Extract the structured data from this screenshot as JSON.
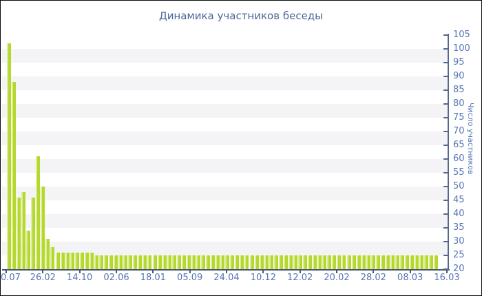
{
  "chart_data": {
    "type": "bar",
    "title": "Динамика участников беседы",
    "ylabel": "Число участников",
    "xlabel": "",
    "ylim": [
      20,
      105
    ],
    "y_ticks": [
      105,
      100,
      95,
      90,
      85,
      80,
      75,
      70,
      65,
      60,
      55,
      50,
      45,
      40,
      35,
      30,
      25,
      20
    ],
    "x_tick_labels": [
      "0.07",
      "26.02",
      "14.10",
      "02.06",
      "18.01",
      "05.09",
      "24.04",
      "10.12",
      "12.02",
      "20.02",
      "28.02",
      "08.03",
      "16.03"
    ],
    "values": [
      102,
      88,
      46,
      48,
      34,
      46,
      61,
      50,
      31,
      28,
      26,
      26,
      26,
      26,
      26,
      26,
      26,
      26,
      25,
      25,
      25,
      25,
      25,
      25,
      25,
      25,
      25,
      25,
      25,
      25,
      25,
      25,
      25,
      25,
      25,
      25,
      25,
      25,
      25,
      25,
      25,
      25,
      25,
      25,
      25,
      25,
      25,
      25,
      25,
      25,
      25,
      25,
      25,
      25,
      25,
      25,
      25,
      25,
      25,
      25,
      25,
      25,
      25,
      25,
      25,
      25,
      25,
      25,
      25,
      25,
      25,
      25,
      25,
      25,
      25,
      25,
      25,
      25,
      25,
      25,
      25,
      25,
      25,
      25,
      25,
      25,
      25,
      25,
      25
    ],
    "grid": "alternating horizontal bands every 5 units",
    "legend_position": "none"
  },
  "colors": {
    "bar": "#b4d92c",
    "bar_highlight": "#dcec9a",
    "stripe": "#f4f4f6",
    "x_axis": "#4a5578",
    "y_axis": "#56678f",
    "tick_label": "#5673b4",
    "title": "#4c669b"
  }
}
